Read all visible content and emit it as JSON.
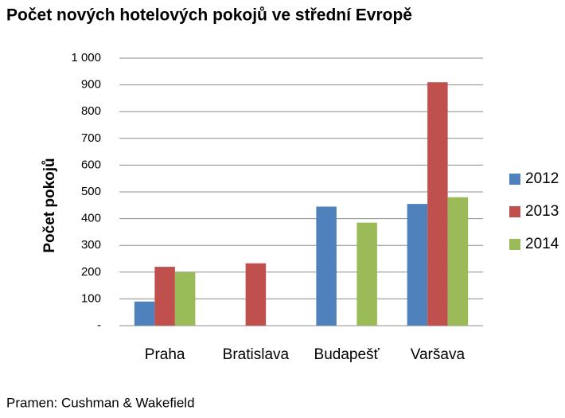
{
  "chart_data": {
    "type": "bar",
    "title": "Počet nových hotelových pokojů ve střední Evropě",
    "y_label": "Počet pokojů",
    "source": "Pramen: Cushman & Wakefield",
    "categories": [
      "Praha",
      "Bratislava",
      "Budapešť",
      "Varšava"
    ],
    "series": [
      {
        "name": "2012",
        "color": "#4f81bd",
        "values": [
          90,
          null,
          445,
          455
        ]
      },
      {
        "name": "2013",
        "color": "#c0504d",
        "values": [
          220,
          233,
          null,
          910
        ]
      },
      {
        "name": "2014",
        "color": "#9bbb59",
        "values": [
          200,
          null,
          385,
          480
        ]
      }
    ],
    "ylim": [
      0,
      1000
    ],
    "yticks": [
      {
        "value": 0,
        "label": "-"
      },
      100,
      200,
      300,
      400,
      500,
      600,
      700,
      800,
      900,
      {
        "value": 1000,
        "label": "1 000"
      }
    ],
    "grid": true,
    "legend": "right"
  }
}
